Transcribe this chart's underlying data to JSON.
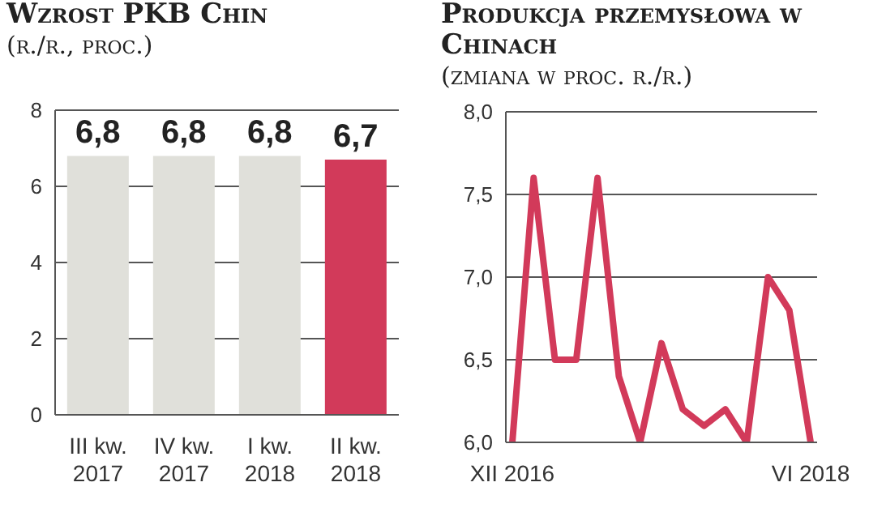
{
  "chart_data": [
    {
      "type": "bar",
      "title": "Wzrost PKB Chin",
      "subtitle": "(r./r., proc.)",
      "categories": [
        "III kw. 2017",
        "IV kw. 2017",
        "I kw. 2018",
        "II kw. 2018"
      ],
      "values": [
        6.8,
        6.8,
        6.8,
        6.7
      ],
      "colors": [
        "#e0e0da",
        "#e0e0da",
        "#e0e0da",
        "#d23a5a"
      ],
      "value_labels": [
        "6,8",
        "6,8",
        "6,8",
        "6,7"
      ],
      "ylim": [
        0,
        8
      ],
      "yticks": [
        0,
        2,
        4,
        6,
        8
      ],
      "grid": "y"
    },
    {
      "type": "line",
      "title": "Produkcja przemysłowa w Chinach",
      "subtitle": "(zmiana w proc. r./r.)",
      "categories": [
        "XII 2016",
        null,
        null,
        null,
        null,
        null,
        null,
        null,
        null,
        null,
        null,
        null,
        null,
        null,
        "VI 2018"
      ],
      "values": [
        6.0,
        7.6,
        6.5,
        6.5,
        7.6,
        6.4,
        6.0,
        6.6,
        6.2,
        6.1,
        6.2,
        6.0,
        7.0,
        6.8,
        6.0
      ],
      "color": "#d23a5a",
      "ylim": [
        6,
        8
      ],
      "yticks": [
        {
          "value": 6,
          "label": "6,0"
        },
        {
          "value": 6.5,
          "label": "6,5"
        },
        {
          "value": 7,
          "label": "7,0"
        },
        {
          "value": 7.5,
          "label": "7,5"
        },
        {
          "value": 8,
          "label": "8,0"
        }
      ],
      "grid": "y",
      "marker": "none",
      "line_style": "solid"
    }
  ]
}
